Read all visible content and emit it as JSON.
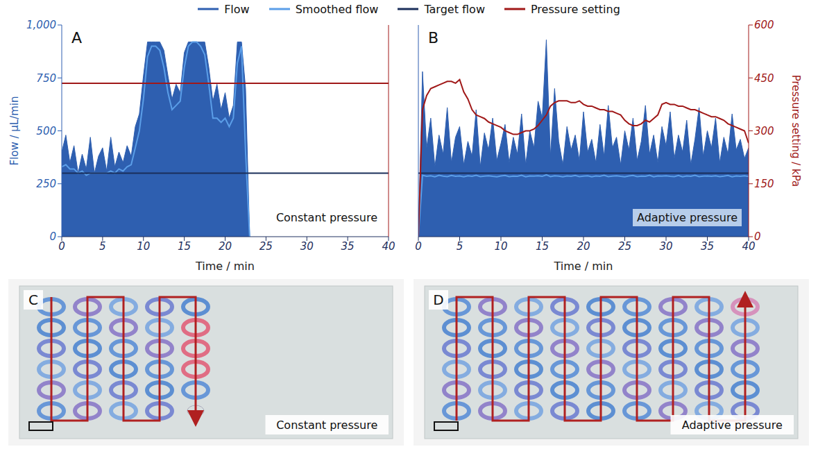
{
  "chart_data": [
    {
      "type": "line",
      "title": "A",
      "annotation": "Constant pressure",
      "x_label": "Time / min",
      "y_label": "Flow / µL/min",
      "legend": "top",
      "grid": false,
      "xlim": [
        0,
        40
      ],
      "xticks": [
        0,
        5,
        10,
        15,
        20,
        25,
        30,
        35,
        40
      ],
      "ylim": [
        0,
        1000
      ],
      "yticks": [
        0,
        250,
        500,
        750,
        {
          "value": 1000,
          "label": "1,000"
        }
      ],
      "y2lim": [
        0,
        600
      ],
      "x": [
        0,
        0.5,
        1,
        1.5,
        2,
        2.5,
        3,
        3.5,
        4,
        4.5,
        5,
        5.5,
        6,
        6.5,
        7,
        7.5,
        8,
        8.5,
        9,
        9.5,
        10,
        10.5,
        11,
        11.5,
        12,
        12.5,
        13,
        13.5,
        14,
        14.5,
        15,
        15.5,
        16,
        16.5,
        17,
        17.5,
        18,
        18.5,
        19,
        19.5,
        20,
        20.5,
        21,
        21.5,
        22,
        22.5,
        23
      ],
      "series": [
        {
          "name": "Flow",
          "type": "area",
          "color": "#2e5fb0",
          "values": [
            400,
            480,
            350,
            430,
            300,
            390,
            320,
            470,
            300,
            380,
            420,
            310,
            470,
            330,
            400,
            350,
            430,
            380,
            520,
            580,
            760,
            920,
            920,
            920,
            920,
            880,
            760,
            650,
            720,
            680,
            870,
            920,
            920,
            920,
            920,
            920,
            800,
            640,
            720,
            600,
            680,
            560,
            620,
            920,
            920,
            700,
            0
          ]
        },
        {
          "name": "Smoothed flow",
          "type": "line",
          "color": "#5b9ee8",
          "values": [
            330,
            340,
            320,
            320,
            300,
            310,
            290,
            300,
            300,
            300,
            300,
            300,
            310,
            300,
            320,
            310,
            330,
            340,
            420,
            500,
            650,
            850,
            900,
            900,
            880,
            800,
            680,
            600,
            620,
            640,
            800,
            900,
            920,
            920,
            900,
            860,
            720,
            560,
            560,
            540,
            560,
            520,
            560,
            820,
            900,
            400,
            0
          ]
        },
        {
          "name": "Target flow",
          "type": "hline",
          "color": "#1a2f5a",
          "value": 300
        },
        {
          "name": "Pressure setting",
          "type": "hline",
          "color": "#a01818",
          "axis": "y2",
          "value": 435
        }
      ]
    },
    {
      "type": "line",
      "title": "B",
      "annotation": "Adaptive pressure",
      "x_label": "Time / min",
      "y2_label": "Pressure setting / kPa",
      "grid": false,
      "xlim": [
        0,
        40
      ],
      "xticks": [
        0,
        5,
        10,
        15,
        20,
        25,
        30,
        35,
        40
      ],
      "ylim": [
        0,
        1000
      ],
      "y2lim": [
        0,
        600
      ],
      "y2ticks": [
        0,
        150,
        300,
        450,
        600
      ],
      "x": [
        0,
        0.5,
        1,
        1.5,
        2,
        2.5,
        3,
        3.5,
        4,
        4.5,
        5,
        5.5,
        6,
        6.5,
        7,
        7.5,
        8,
        8.5,
        9,
        9.5,
        10,
        10.5,
        11,
        11.5,
        12,
        12.5,
        13,
        13.5,
        14,
        14.5,
        15,
        15.5,
        16,
        16.5,
        17,
        17.5,
        18,
        18.5,
        19,
        19.5,
        20,
        20.5,
        21,
        21.5,
        22,
        22.5,
        23,
        23.5,
        24,
        24.5,
        25,
        25.5,
        26,
        26.5,
        27,
        27.5,
        28,
        28.5,
        29,
        29.5,
        30,
        30.5,
        31,
        31.5,
        32,
        32.5,
        33,
        33.5,
        34,
        34.5,
        35,
        35.5,
        36,
        36.5,
        37,
        37.5,
        38,
        38.5,
        39,
        39.5,
        40
      ],
      "series": [
        {
          "name": "Flow",
          "type": "area",
          "color": "#2e5fb0",
          "values": [
            0,
            780,
            420,
            560,
            330,
            480,
            390,
            610,
            350,
            470,
            520,
            340,
            450,
            380,
            600,
            330,
            490,
            410,
            560,
            360,
            440,
            530,
            350,
            470,
            390,
            580,
            340,
            500,
            420,
            640,
            560,
            930,
            380,
            700,
            450,
            340,
            520,
            410,
            480,
            360,
            590,
            400,
            460,
            350,
            530,
            380,
            620,
            420,
            470,
            340,
            500,
            410,
            560,
            360,
            450,
            620,
            390,
            480,
            350,
            520,
            430,
            590,
            370,
            480,
            400,
            550,
            340,
            460,
            610,
            380,
            500,
            420,
            560,
            350,
            470,
            390,
            580,
            410,
            460,
            370,
            420
          ]
        },
        {
          "name": "Smoothed flow",
          "type": "line",
          "color": "#5b9ee8",
          "values": [
            0,
            290,
            285,
            288,
            283,
            290,
            286,
            284,
            289,
            285,
            287,
            283,
            288,
            285,
            290,
            284,
            286,
            288,
            285,
            283,
            287,
            289,
            284,
            286,
            285,
            290,
            283,
            287,
            286,
            288,
            285,
            292,
            284,
            288,
            286,
            283,
            287,
            285,
            289,
            284,
            286,
            288,
            283,
            287,
            285,
            290,
            284,
            286,
            288,
            285,
            283,
            287,
            289,
            284,
            286,
            285,
            290,
            283,
            287,
            286,
            288,
            285,
            284,
            289,
            283,
            287,
            285,
            290,
            284,
            286,
            287,
            285,
            288,
            284,
            286,
            289,
            283,
            287,
            285,
            288,
            284
          ]
        },
        {
          "name": "Target flow",
          "type": "hline",
          "color": "#1a2f5a",
          "value": 300
        },
        {
          "name": "Pressure setting",
          "type": "line",
          "color": "#a01818",
          "axis": "y2",
          "values": [
            0,
            360,
            400,
            420,
            425,
            430,
            435,
            440,
            440,
            435,
            445,
            410,
            390,
            360,
            345,
            340,
            335,
            325,
            320,
            315,
            310,
            300,
            295,
            290,
            290,
            295,
            300,
            300,
            305,
            315,
            330,
            345,
            370,
            380,
            385,
            385,
            385,
            380,
            380,
            385,
            375,
            370,
            370,
            365,
            360,
            360,
            355,
            355,
            350,
            345,
            330,
            320,
            315,
            315,
            320,
            330,
            325,
            335,
            345,
            375,
            380,
            375,
            375,
            370,
            370,
            365,
            360,
            360,
            355,
            350,
            345,
            340,
            340,
            335,
            330,
            320,
            315,
            310,
            305,
            300,
            265
          ]
        }
      ]
    }
  ],
  "panels": [
    {
      "letter": "C",
      "label": "Constant pressure"
    },
    {
      "letter": "D",
      "label": "Adaptive pressure"
    }
  ]
}
